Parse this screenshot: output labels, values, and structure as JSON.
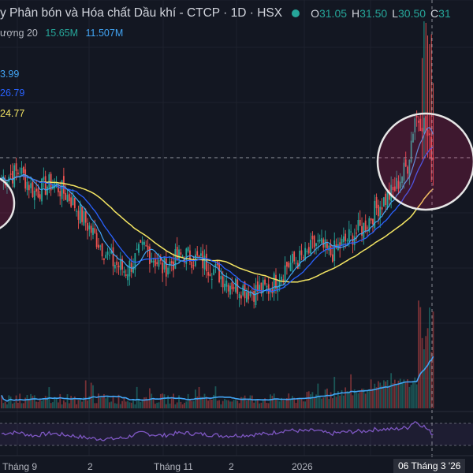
{
  "header": {
    "title": "y Phân bón và Hóa chất Dầu khí - CTCP · 1D · HSX",
    "open_label": "O",
    "open": "31.05",
    "high_label": "H",
    "high": "31.50",
    "low_label": "L",
    "low": "30.50",
    "close_label": "C",
    "close": "31",
    "status_color": "#26a69a"
  },
  "volume_legend": {
    "label": "ượng 20",
    "value1": "15.65M",
    "value2": "11.507M"
  },
  "ma_legend": [
    {
      "value": "3.99",
      "color": "#42a5f5"
    },
    {
      "value": "26.79",
      "color": "#2962ff"
    },
    {
      "value": "24.77",
      "color": "#f5e663"
    }
  ],
  "x_axis": {
    "labels": [
      "Tháng 9",
      "2",
      "Tháng 11",
      "2",
      "2026"
    ],
    "highlight": "06 Tháng 3 '26"
  },
  "colors": {
    "up": "#26a69a",
    "down": "#ef5350",
    "ma_fast": "#42a5f5",
    "ma_mid": "#2962ff",
    "ma_slow": "#f5e663",
    "rsi": "#7e57c2",
    "background": "#131722"
  },
  "chart_data": {
    "type": "candlestick",
    "price_range": [
      15,
      39
    ],
    "series": [
      {
        "name": "price",
        "description": "daily candles",
        "segments": [
          {
            "range": "start",
            "value": 29.5
          },
          {
            "range": "Tháng 9",
            "value": 28.5
          },
          {
            "range": "Tháng 11",
            "value": 23.5
          },
          {
            "range": "2026",
            "value": 21.5
          },
          {
            "range": "06 Tháng 3 '26",
            "value": 31.0
          }
        ]
      },
      {
        "name": "3.99",
        "values": "fast moving average"
      },
      {
        "name": "26.79",
        "values": "medium moving average"
      },
      {
        "name": "24.77",
        "values": "slow moving average"
      }
    ],
    "volume": {
      "values": [
        "15.65M",
        "11.507M"
      ]
    }
  }
}
